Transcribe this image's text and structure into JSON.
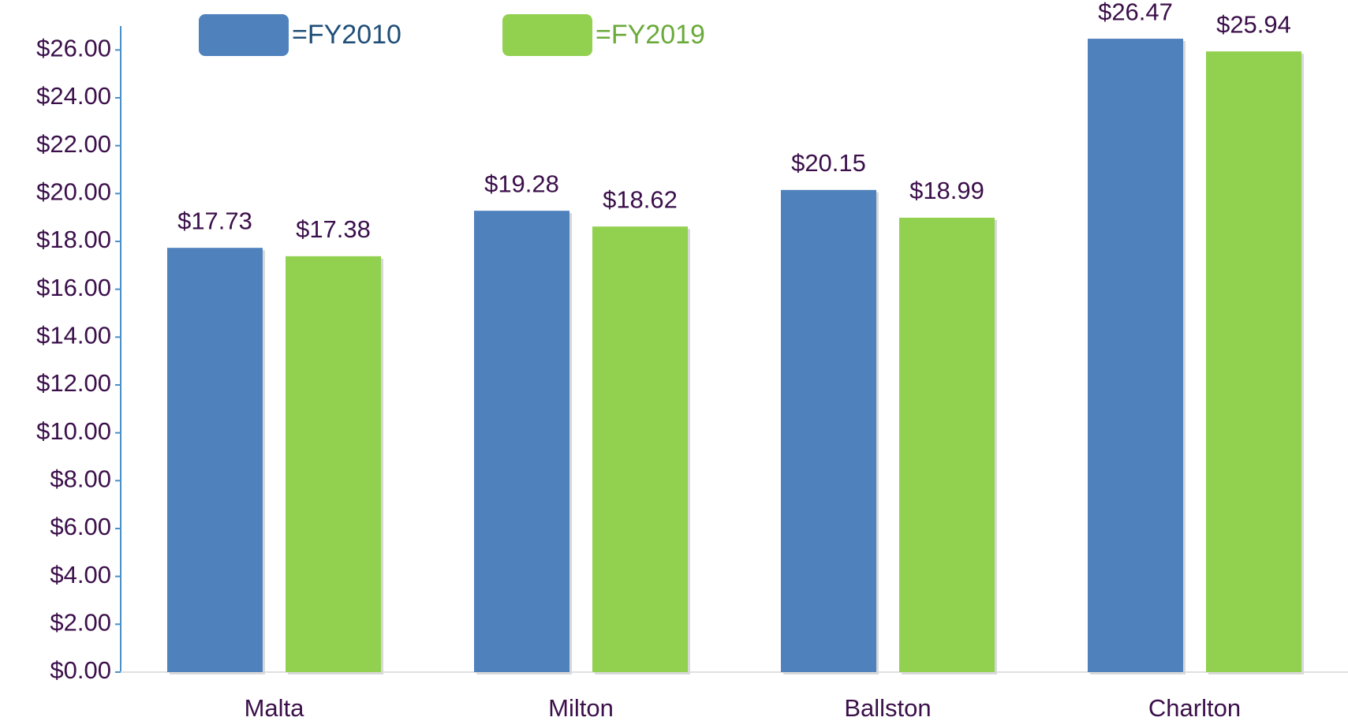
{
  "chart_data": {
    "type": "bar",
    "categories": [
      "Malta",
      "Milton",
      "Ballston",
      "Charlton"
    ],
    "series": [
      {
        "name": "=FY2010",
        "color": "#4f81bd",
        "values": [
          17.73,
          19.28,
          20.15,
          26.47
        ],
        "value_labels": [
          "$17.73",
          "$19.28",
          "$20.15",
          "$26.47"
        ]
      },
      {
        "name": "=FY2019",
        "color": "#92d050",
        "values": [
          17.38,
          18.62,
          18.99,
          25.94
        ],
        "value_labels": [
          "$17.38",
          "$18.62",
          "$18.99",
          "$25.94"
        ]
      }
    ],
    "ylim": [
      0,
      27
    ],
    "yticks": [
      {
        "value": 0,
        "label": "$0.00"
      },
      {
        "value": 2,
        "label": "$2.00"
      },
      {
        "value": 4,
        "label": "$4.00"
      },
      {
        "value": 6,
        "label": "$6.00"
      },
      {
        "value": 8,
        "label": "$8.00"
      },
      {
        "value": 10,
        "label": "$10.00"
      },
      {
        "value": 12,
        "label": "$12.00"
      },
      {
        "value": 14,
        "label": "$14.00"
      },
      {
        "value": 16,
        "label": "$16.00"
      },
      {
        "value": 18,
        "label": "$18.00"
      },
      {
        "value": 20,
        "label": "$20.00"
      },
      {
        "value": 22,
        "label": "$22.00"
      },
      {
        "value": 24,
        "label": "$24.00"
      },
      {
        "value": 26,
        "label": "$26.00"
      }
    ],
    "legend_text_colors": [
      "#1f4e79",
      "#6aaa3a"
    ]
  }
}
